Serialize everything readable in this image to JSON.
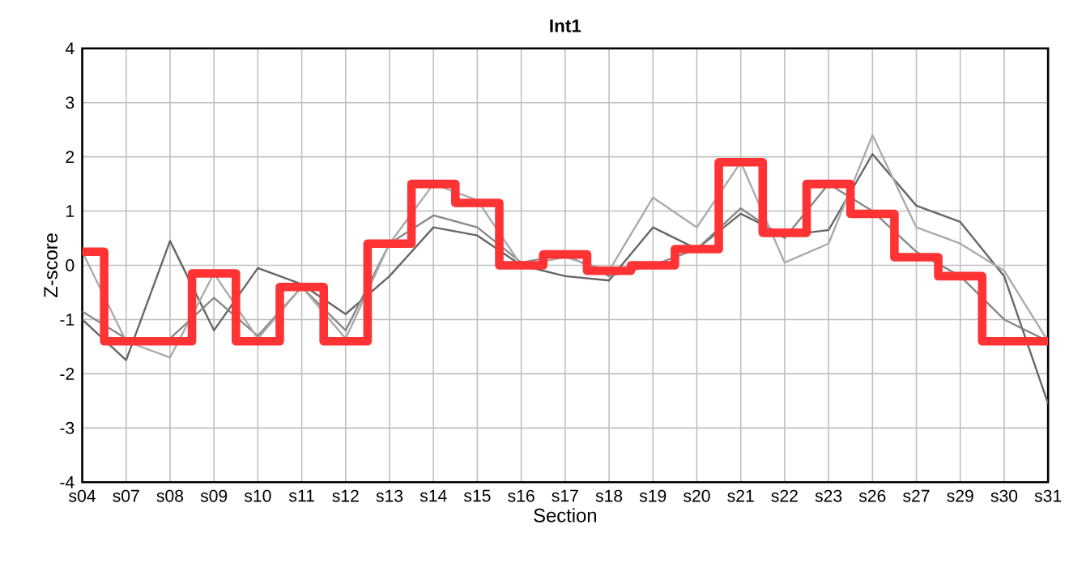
{
  "chart_data": {
    "type": "line",
    "title": "Int1",
    "xlabel": "Section",
    "ylabel": "Z-score",
    "categories": [
      "s04",
      "s07",
      "s08",
      "s09",
      "s10",
      "s11",
      "s12",
      "s13",
      "s14",
      "s15",
      "s16",
      "s17",
      "s18",
      "s19",
      "s20",
      "s21",
      "s22",
      "s23",
      "s26",
      "s27",
      "s29",
      "s30",
      "s31"
    ],
    "ylim": [
      -4,
      4
    ],
    "yticks": [
      -4,
      -3,
      -2,
      -1,
      0,
      1,
      2,
      3,
      4
    ],
    "grid": true,
    "marker": "none",
    "series": [
      {
        "color": "#666666",
        "values": [
          -1.0,
          -1.75,
          0.45,
          -1.2,
          -0.05,
          -0.35,
          -0.9,
          -0.2,
          0.7,
          0.55,
          0.0,
          -0.2,
          -0.28,
          0.7,
          0.3,
          0.95,
          0.55,
          0.65,
          2.05,
          1.1,
          0.8,
          -0.2,
          -2.55
        ]
      },
      {
        "color": "#888888",
        "values": [
          -0.85,
          -1.35,
          -1.35,
          -0.6,
          -1.3,
          -0.4,
          -1.2,
          0.4,
          0.92,
          0.7,
          0.05,
          0.2,
          -0.2,
          0.0,
          0.3,
          1.05,
          0.5,
          1.5,
          1.0,
          0.25,
          -0.2,
          -1.0,
          -1.4
        ]
      },
      {
        "color": "#aaaaaa",
        "values": [
          0.25,
          -1.4,
          -1.7,
          -0.15,
          -1.35,
          -0.4,
          -1.35,
          0.4,
          1.5,
          1.2,
          0.0,
          0.15,
          -0.1,
          1.25,
          0.7,
          1.9,
          0.05,
          0.4,
          2.4,
          0.7,
          0.4,
          -0.1,
          -1.4
        ]
      },
      {
        "type": "step",
        "color": "#ff3333",
        "values": [
          0.25,
          -1.4,
          -1.4,
          -0.15,
          -1.4,
          -0.4,
          -1.4,
          0.4,
          1.5,
          1.15,
          0.0,
          0.2,
          -0.1,
          0.0,
          0.3,
          1.9,
          0.6,
          1.5,
          0.95,
          0.15,
          -0.2,
          -1.4,
          -1.4
        ]
      }
    ]
  }
}
